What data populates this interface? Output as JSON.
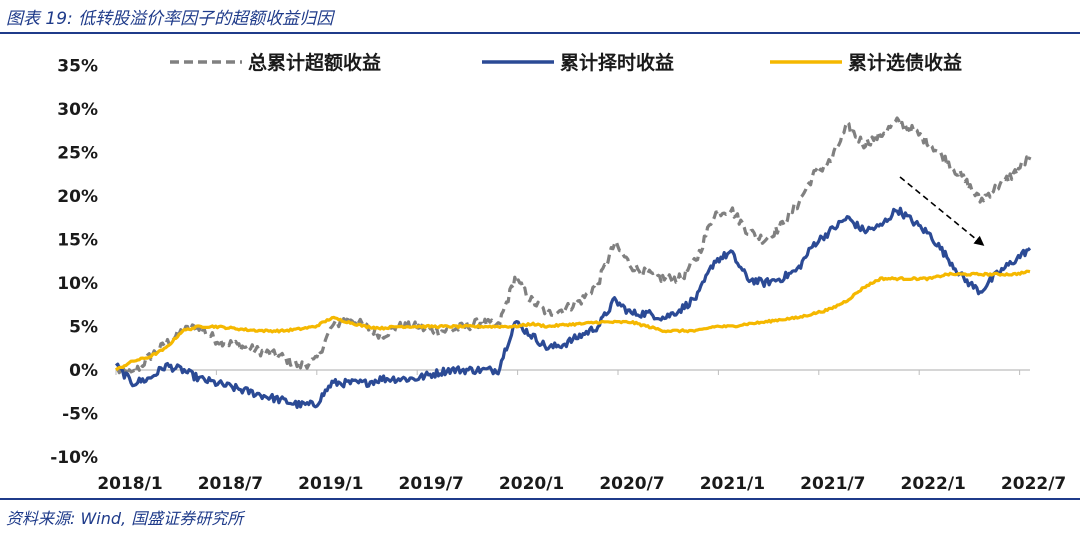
{
  "header": {
    "title": "图表 19:  低转股溢价率因子的超额收益归因"
  },
  "footer": {
    "source": "资料来源:  Wind,  国盛证券研究所"
  },
  "chart_data": {
    "type": "line",
    "title": "图表 19:  低转股溢价率因子的超额收益归因",
    "xlabel": "",
    "ylabel": "",
    "x_ticks": [
      "2018/1",
      "2018/7",
      "2019/1",
      "2019/7",
      "2020/1",
      "2020/7",
      "2021/1",
      "2021/7",
      "2022/1",
      "2022/7"
    ],
    "y_ticks": [
      "35%",
      "30%",
      "25%",
      "20%",
      "15%",
      "10%",
      "5%",
      "0%",
      "-5%",
      "-10%"
    ],
    "ylim": [
      -10,
      35
    ],
    "grid": false,
    "legend_position": "top",
    "x": [
      "2018/1",
      "2018/2",
      "2018/3",
      "2018/4",
      "2018/5",
      "2018/6",
      "2018/7",
      "2018/8",
      "2018/9",
      "2018/10",
      "2018/11",
      "2018/12",
      "2019/1",
      "2019/2",
      "2019/3",
      "2019/4",
      "2019/5",
      "2019/6",
      "2019/7",
      "2019/8",
      "2019/9",
      "2019/10",
      "2019/11",
      "2019/12",
      "2020/1",
      "2020/2",
      "2020/3",
      "2020/4",
      "2020/5",
      "2020/6",
      "2020/7",
      "2020/8",
      "2020/9",
      "2020/10",
      "2020/11",
      "2020/12",
      "2021/1",
      "2021/2",
      "2021/3",
      "2021/4",
      "2021/5",
      "2021/6",
      "2021/7",
      "2021/8",
      "2021/9",
      "2021/10",
      "2021/11",
      "2021/12",
      "2022/1",
      "2022/2",
      "2022/3",
      "2022/4",
      "2022/5",
      "2022/6",
      "2022/7",
      "2022/8"
    ],
    "series": [
      {
        "name": "总累计超额收益",
        "color": "#808080",
        "style": "dashed",
        "values": [
          0.0,
          -0.5,
          1.5,
          3.0,
          4.5,
          5.0,
          3.5,
          3.0,
          2.5,
          2.0,
          1.5,
          0.5,
          1.0,
          5.0,
          6.0,
          5.0,
          4.0,
          5.0,
          5.0,
          4.5,
          4.5,
          5.0,
          5.5,
          5.0,
          10.5,
          8.0,
          6.5,
          7.0,
          8.0,
          10.0,
          14.5,
          12.0,
          11.0,
          10.5,
          10.5,
          13.0,
          18.0,
          18.5,
          16.0,
          15.0,
          16.5,
          19.0,
          22.5,
          24.0,
          28.0,
          26.0,
          27.0,
          28.5,
          27.5,
          26.0,
          24.0,
          22.0,
          19.5,
          21.0,
          22.5,
          24.5
        ]
      },
      {
        "name": "累计择时收益",
        "color": "#2b4a95",
        "style": "solid",
        "values": [
          0.5,
          -1.5,
          -1.0,
          0.5,
          0.0,
          -1.0,
          -1.5,
          -2.0,
          -2.5,
          -3.0,
          -3.5,
          -4.0,
          -4.0,
          -1.5,
          -1.5,
          -1.5,
          -1.0,
          -1.0,
          -1.0,
          -0.5,
          0.0,
          0.0,
          0.0,
          0.0,
          5.5,
          4.0,
          2.5,
          3.0,
          4.0,
          5.0,
          8.0,
          6.5,
          6.5,
          6.0,
          7.0,
          8.5,
          12.5,
          13.5,
          10.5,
          10.0,
          10.5,
          11.5,
          14.5,
          16.0,
          17.5,
          16.0,
          16.5,
          18.5,
          17.0,
          15.5,
          13.0,
          10.5,
          9.0,
          11.0,
          12.5,
          14.0
        ]
      },
      {
        "name": "累计选债收益",
        "color": "#f5b800",
        "style": "solid",
        "values": [
          0.0,
          1.0,
          1.5,
          2.5,
          4.5,
          5.0,
          5.0,
          4.8,
          4.6,
          4.5,
          4.5,
          4.7,
          5.0,
          6.0,
          5.5,
          5.0,
          4.8,
          5.0,
          5.0,
          5.0,
          5.0,
          5.0,
          5.0,
          5.0,
          5.0,
          5.3,
          5.0,
          5.2,
          5.3,
          5.5,
          5.5,
          5.5,
          5.0,
          4.5,
          4.5,
          4.5,
          5.0,
          5.0,
          5.3,
          5.5,
          5.8,
          6.0,
          6.5,
          7.0,
          8.0,
          9.5,
          10.5,
          10.5,
          10.5,
          10.5,
          11.0,
          11.0,
          11.0,
          11.0,
          11.0,
          11.3
        ]
      }
    ],
    "annotations": [
      {
        "type": "arrow",
        "style": "dashed",
        "color": "#000000"
      }
    ]
  }
}
